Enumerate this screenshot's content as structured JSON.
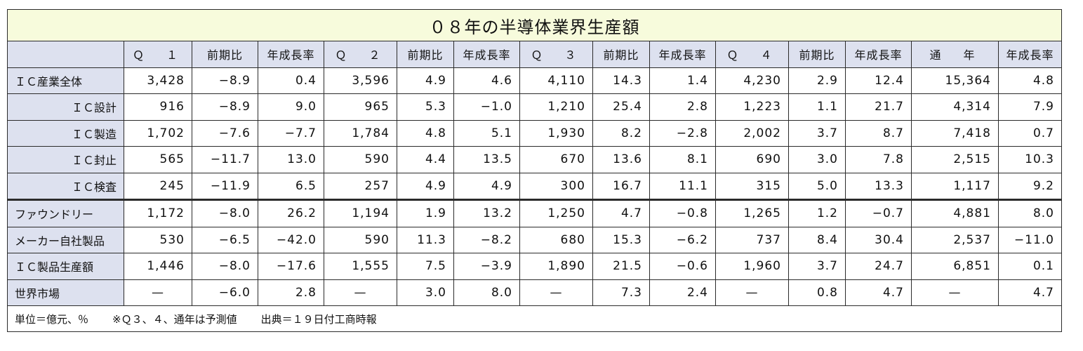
{
  "title": "０８年の半導体業界生産額",
  "headers": [
    "",
    "Ｑ　１",
    "前期比",
    "年成長率",
    "Ｑ　２",
    "前期比",
    "年成長率",
    "Ｑ　３",
    "前期比",
    "年成長率",
    "Ｑ　４",
    "前期比",
    "年成長率",
    "通　年",
    "年成長率"
  ],
  "rows": [
    {
      "label": "ＩＣ産業全体",
      "cells": [
        "3,428",
        "−8.9",
        "0.4",
        "3,596",
        "4.9",
        "4.6",
        "4,110",
        "14.3",
        "1.4",
        "4,230",
        "2.9",
        "12.4",
        "15,364",
        "4.8"
      ]
    },
    {
      "label": "ＩＣ設計",
      "cells": [
        "916",
        "−8.9",
        "9.0",
        "965",
        "5.3",
        "−1.0",
        "1,210",
        "25.4",
        "2.8",
        "1,223",
        "1.1",
        "21.7",
        "4,314",
        "7.9"
      ]
    },
    {
      "label": "ＩＣ製造",
      "cells": [
        "1,702",
        "−7.6",
        "−7.7",
        "1,784",
        "4.8",
        "5.1",
        "1,930",
        "8.2",
        "−2.8",
        "2,002",
        "3.7",
        "8.7",
        "7,418",
        "0.7"
      ]
    },
    {
      "label": "ＩＣ封止",
      "cells": [
        "565",
        "−11.7",
        "13.0",
        "590",
        "4.4",
        "13.5",
        "670",
        "13.6",
        "8.1",
        "690",
        "3.0",
        "7.8",
        "2,515",
        "10.3"
      ]
    },
    {
      "label": "ＩＣ検査",
      "cells": [
        "245",
        "−11.9",
        "6.5",
        "257",
        "4.9",
        "4.9",
        "300",
        "16.7",
        "11.1",
        "315",
        "5.0",
        "13.3",
        "1,117",
        "9.2"
      ]
    },
    {
      "label": "ファウンドリー",
      "cells": [
        "1,172",
        "−8.0",
        "26.2",
        "1,194",
        "1.9",
        "13.2",
        "1,250",
        "4.7",
        "−0.8",
        "1,265",
        "1.2",
        "−0.7",
        "4,881",
        "8.0"
      ]
    },
    {
      "label": "メーカー自社製品",
      "cells": [
        "530",
        "−6.5",
        "−42.0",
        "590",
        "11.3",
        "−8.2",
        "680",
        "15.3",
        "−6.2",
        "737",
        "8.4",
        "30.4",
        "2,537",
        "−11.0"
      ]
    },
    {
      "label": "ＩＣ製品生産額",
      "cells": [
        "1,446",
        "−8.0",
        "−17.6",
        "1,555",
        "7.5",
        "−3.9",
        "1,890",
        "21.5",
        "−0.6",
        "1,960",
        "3.7",
        "24.7",
        "6,851",
        "0.1"
      ]
    },
    {
      "label": "世界市場",
      "cells": [
        "—",
        "−6.0",
        "2.8",
        "—",
        "3.0",
        "8.0",
        "—",
        "7.3",
        "2.4",
        "—",
        "0.8",
        "4.7",
        "—",
        "4.7"
      ]
    }
  ],
  "notes": [
    "単位＝億元、％",
    "※Ｑ３、４、通年は予測値",
    "出典＝１９日付工商時報"
  ]
}
